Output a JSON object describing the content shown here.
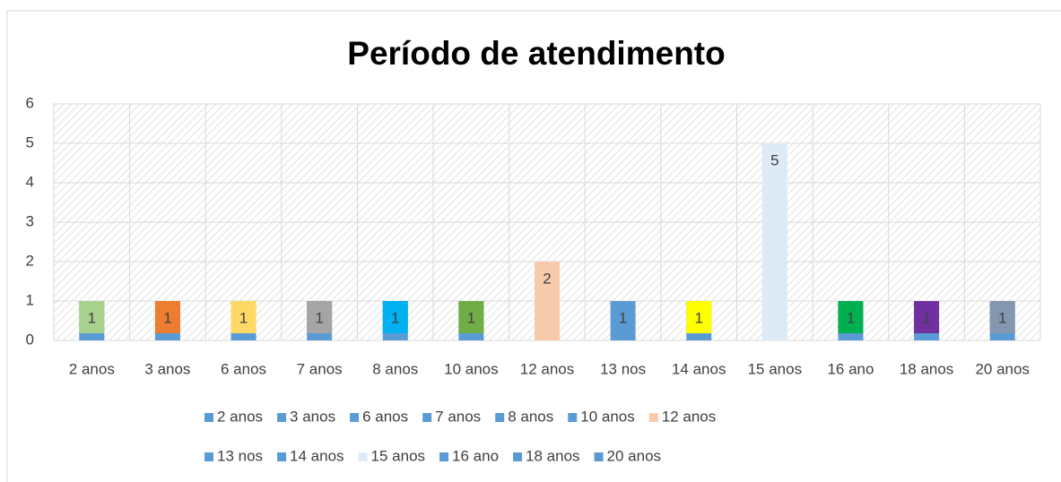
{
  "chart_data": {
    "type": "bar",
    "title": "Período de atendimento",
    "categories": [
      "2 anos",
      "3 anos",
      "6 anos",
      "7 anos",
      "8 anos",
      "10 anos",
      "12 anos",
      "13 nos",
      "14 anos",
      "15 anos",
      "16 ano",
      "18 anos",
      "20 anos"
    ],
    "values": [
      1,
      1,
      1,
      1,
      1,
      1,
      2,
      1,
      1,
      5,
      1,
      1,
      1
    ],
    "colors": [
      "#5b9bd5",
      "#5b9bd5",
      "#5b9bd5",
      "#5b9bd5",
      "#5b9bd5",
      "#5b9bd5",
      "#f8cbad",
      "#5b9bd5",
      "#5b9bd5",
      "#deebf7",
      "#5b9bd5",
      "#5b9bd5",
      "#5b9bd5"
    ],
    "label_colors": [
      "#a9d18e",
      "#ed7d31",
      "#ffd966",
      "#a5a5a5",
      "#00b0f0",
      "#70ad47",
      null,
      null,
      "#ffff00",
      null,
      "#00b050",
      "#7030a0",
      "#8497b0"
    ],
    "ylim": [
      0,
      6
    ],
    "yticks": [
      0,
      1,
      2,
      3,
      4,
      5,
      6
    ],
    "grid": true,
    "legend": "bottom"
  }
}
